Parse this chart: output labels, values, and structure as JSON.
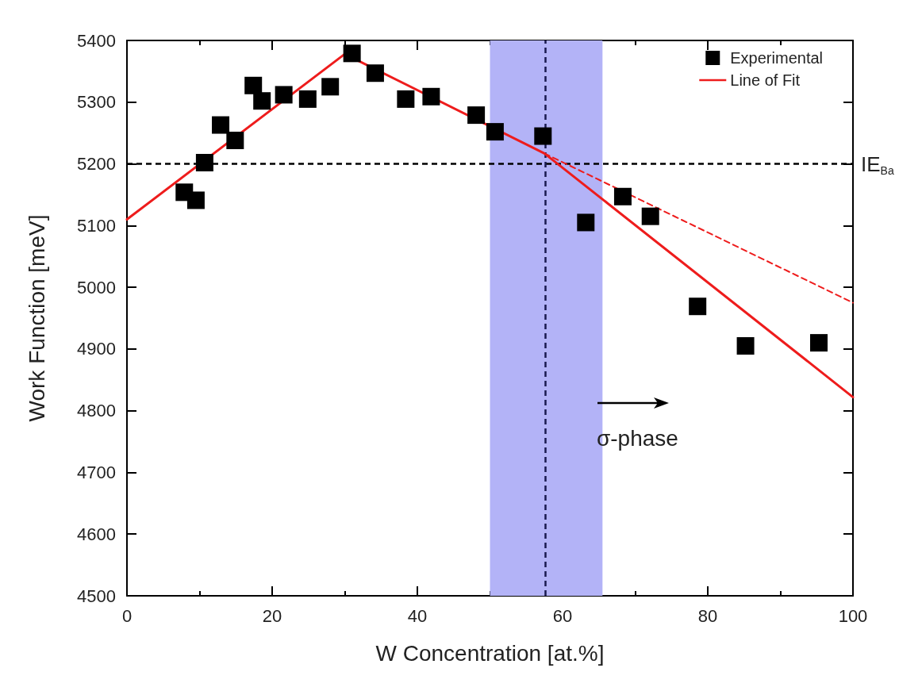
{
  "chart_data": {
    "type": "scatter",
    "xlabel": "W Concentration [at.%]",
    "ylabel": "Work Function [meV]",
    "xlim": [
      0,
      100
    ],
    "xticks": [
      0,
      20,
      40,
      60,
      80,
      100
    ],
    "ylim": [
      4500,
      5400
    ],
    "yticks": [
      4500,
      4600,
      4700,
      4800,
      4900,
      5000,
      5100,
      5200,
      5300,
      5400
    ],
    "grid": false,
    "legend": "top right",
    "series": [
      {
        "name": "Experimental",
        "marker": "square",
        "color": "#000000",
        "x": [
          7.9,
          9.5,
          10.7,
          12.9,
          14.9,
          17.4,
          18.6,
          21.6,
          24.9,
          28.0,
          31.0,
          34.2,
          38.4,
          41.9,
          48.1,
          50.7,
          57.3,
          63.2,
          68.3,
          72.1,
          78.6,
          85.2,
          95.3
        ],
        "values": [
          5154,
          5141,
          5202,
          5263,
          5238,
          5327,
          5302,
          5312,
          5305,
          5325,
          5379,
          5347,
          5305,
          5309,
          5279,
          5252,
          5245,
          5105,
          5147,
          5115,
          4969,
          4905,
          4910
        ]
      },
      {
        "name": "Line of Fit",
        "type": "line",
        "marker": "none",
        "line_style": "solid",
        "color": "#ee1c1c",
        "x": [
          0,
          30,
          57.5,
          100
        ],
        "values": [
          5110,
          5378,
          5217,
          4822
        ]
      },
      {
        "type": "line",
        "marker": "none",
        "line_style": "dashed",
        "color": "#ee1c1c",
        "x": [
          57.5,
          100
        ],
        "values": [
          5217,
          4975
        ]
      }
    ],
    "ref_lines": [
      {
        "axis": "y",
        "value": 5200,
        "label": "IE$_{Ba}$",
        "color": "#000000",
        "line_style": "dashed"
      },
      {
        "axis": "x",
        "value": 57.6,
        "color": "#1a1a50",
        "line_style": "dashed"
      }
    ],
    "bands": [
      {
        "axis": "x",
        "from": 50,
        "to": 65.5,
        "color": "#b3b3f7"
      }
    ],
    "annotations": [
      "σ-phase"
    ]
  }
}
